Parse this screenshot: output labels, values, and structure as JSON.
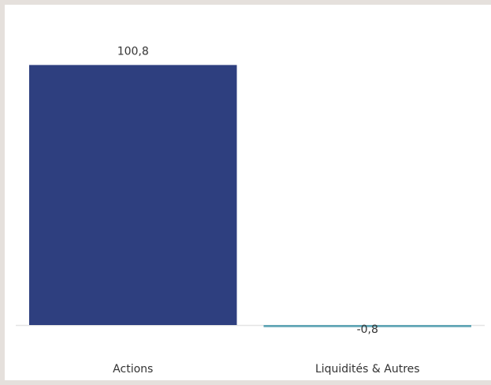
{
  "chart_data": {
    "type": "bar",
    "categories": [
      "Actions",
      "Liquidités & Autres"
    ],
    "values": [
      100.8,
      -0.8
    ],
    "value_labels": [
      "100,8",
      "-0,8"
    ],
    "colors": [
      "#2e3f7f",
      "#5aa2b3"
    ],
    "baseline_color": "#e4e4e4",
    "title": "",
    "xlabel": "",
    "ylabel": "",
    "ylim": [
      -0.8,
      100.8
    ],
    "grid": false,
    "legend": "none"
  }
}
